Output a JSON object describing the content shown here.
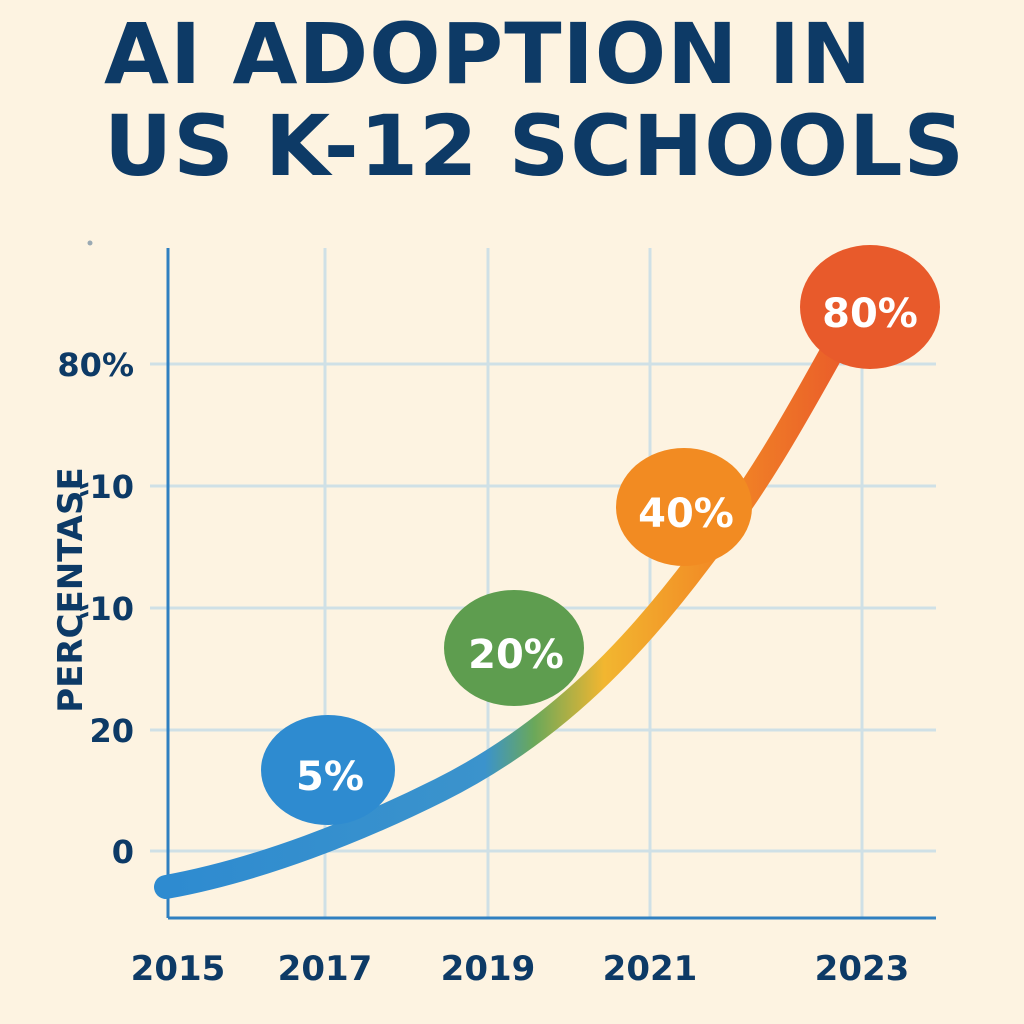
{
  "title_lines": [
    "AI ADOPTION IN",
    "US K-12 SCHOOLS"
  ],
  "chart_data": {
    "type": "line",
    "title": "AI ADOPTION IN US K-12 SCHOOLS",
    "ylabel": "PERCENTASE",
    "xlabel": "",
    "x_tick_labels": [
      "2015",
      "2017",
      "2019",
      "2021",
      "2023"
    ],
    "y_tick_labels": [
      "0",
      "20",
      "⸗10",
      "⸗10",
      "80%"
    ],
    "series": [
      {
        "x": [
          2015,
          2017,
          2019,
          2021,
          2023
        ],
        "values": [
          0,
          5,
          20,
          40,
          80
        ],
        "data_labels": [
          "",
          "5%",
          "20%",
          "40%",
          "80%"
        ]
      }
    ],
    "grid": true,
    "legend": "none",
    "colors": {
      "title": "#0d3a66",
      "axis": "#2f7fc0",
      "grid": "#cfe0e6",
      "background": "#fdf3e1",
      "gradient": [
        "#2e8bd0",
        "#3b93cc",
        "#6aa85a",
        "#f2b630",
        "#f28a25",
        "#e8532b"
      ],
      "bubbles": [
        "#2e8bd0",
        "#5e9d4f",
        "#f28b22",
        "#e85a2b"
      ]
    }
  }
}
